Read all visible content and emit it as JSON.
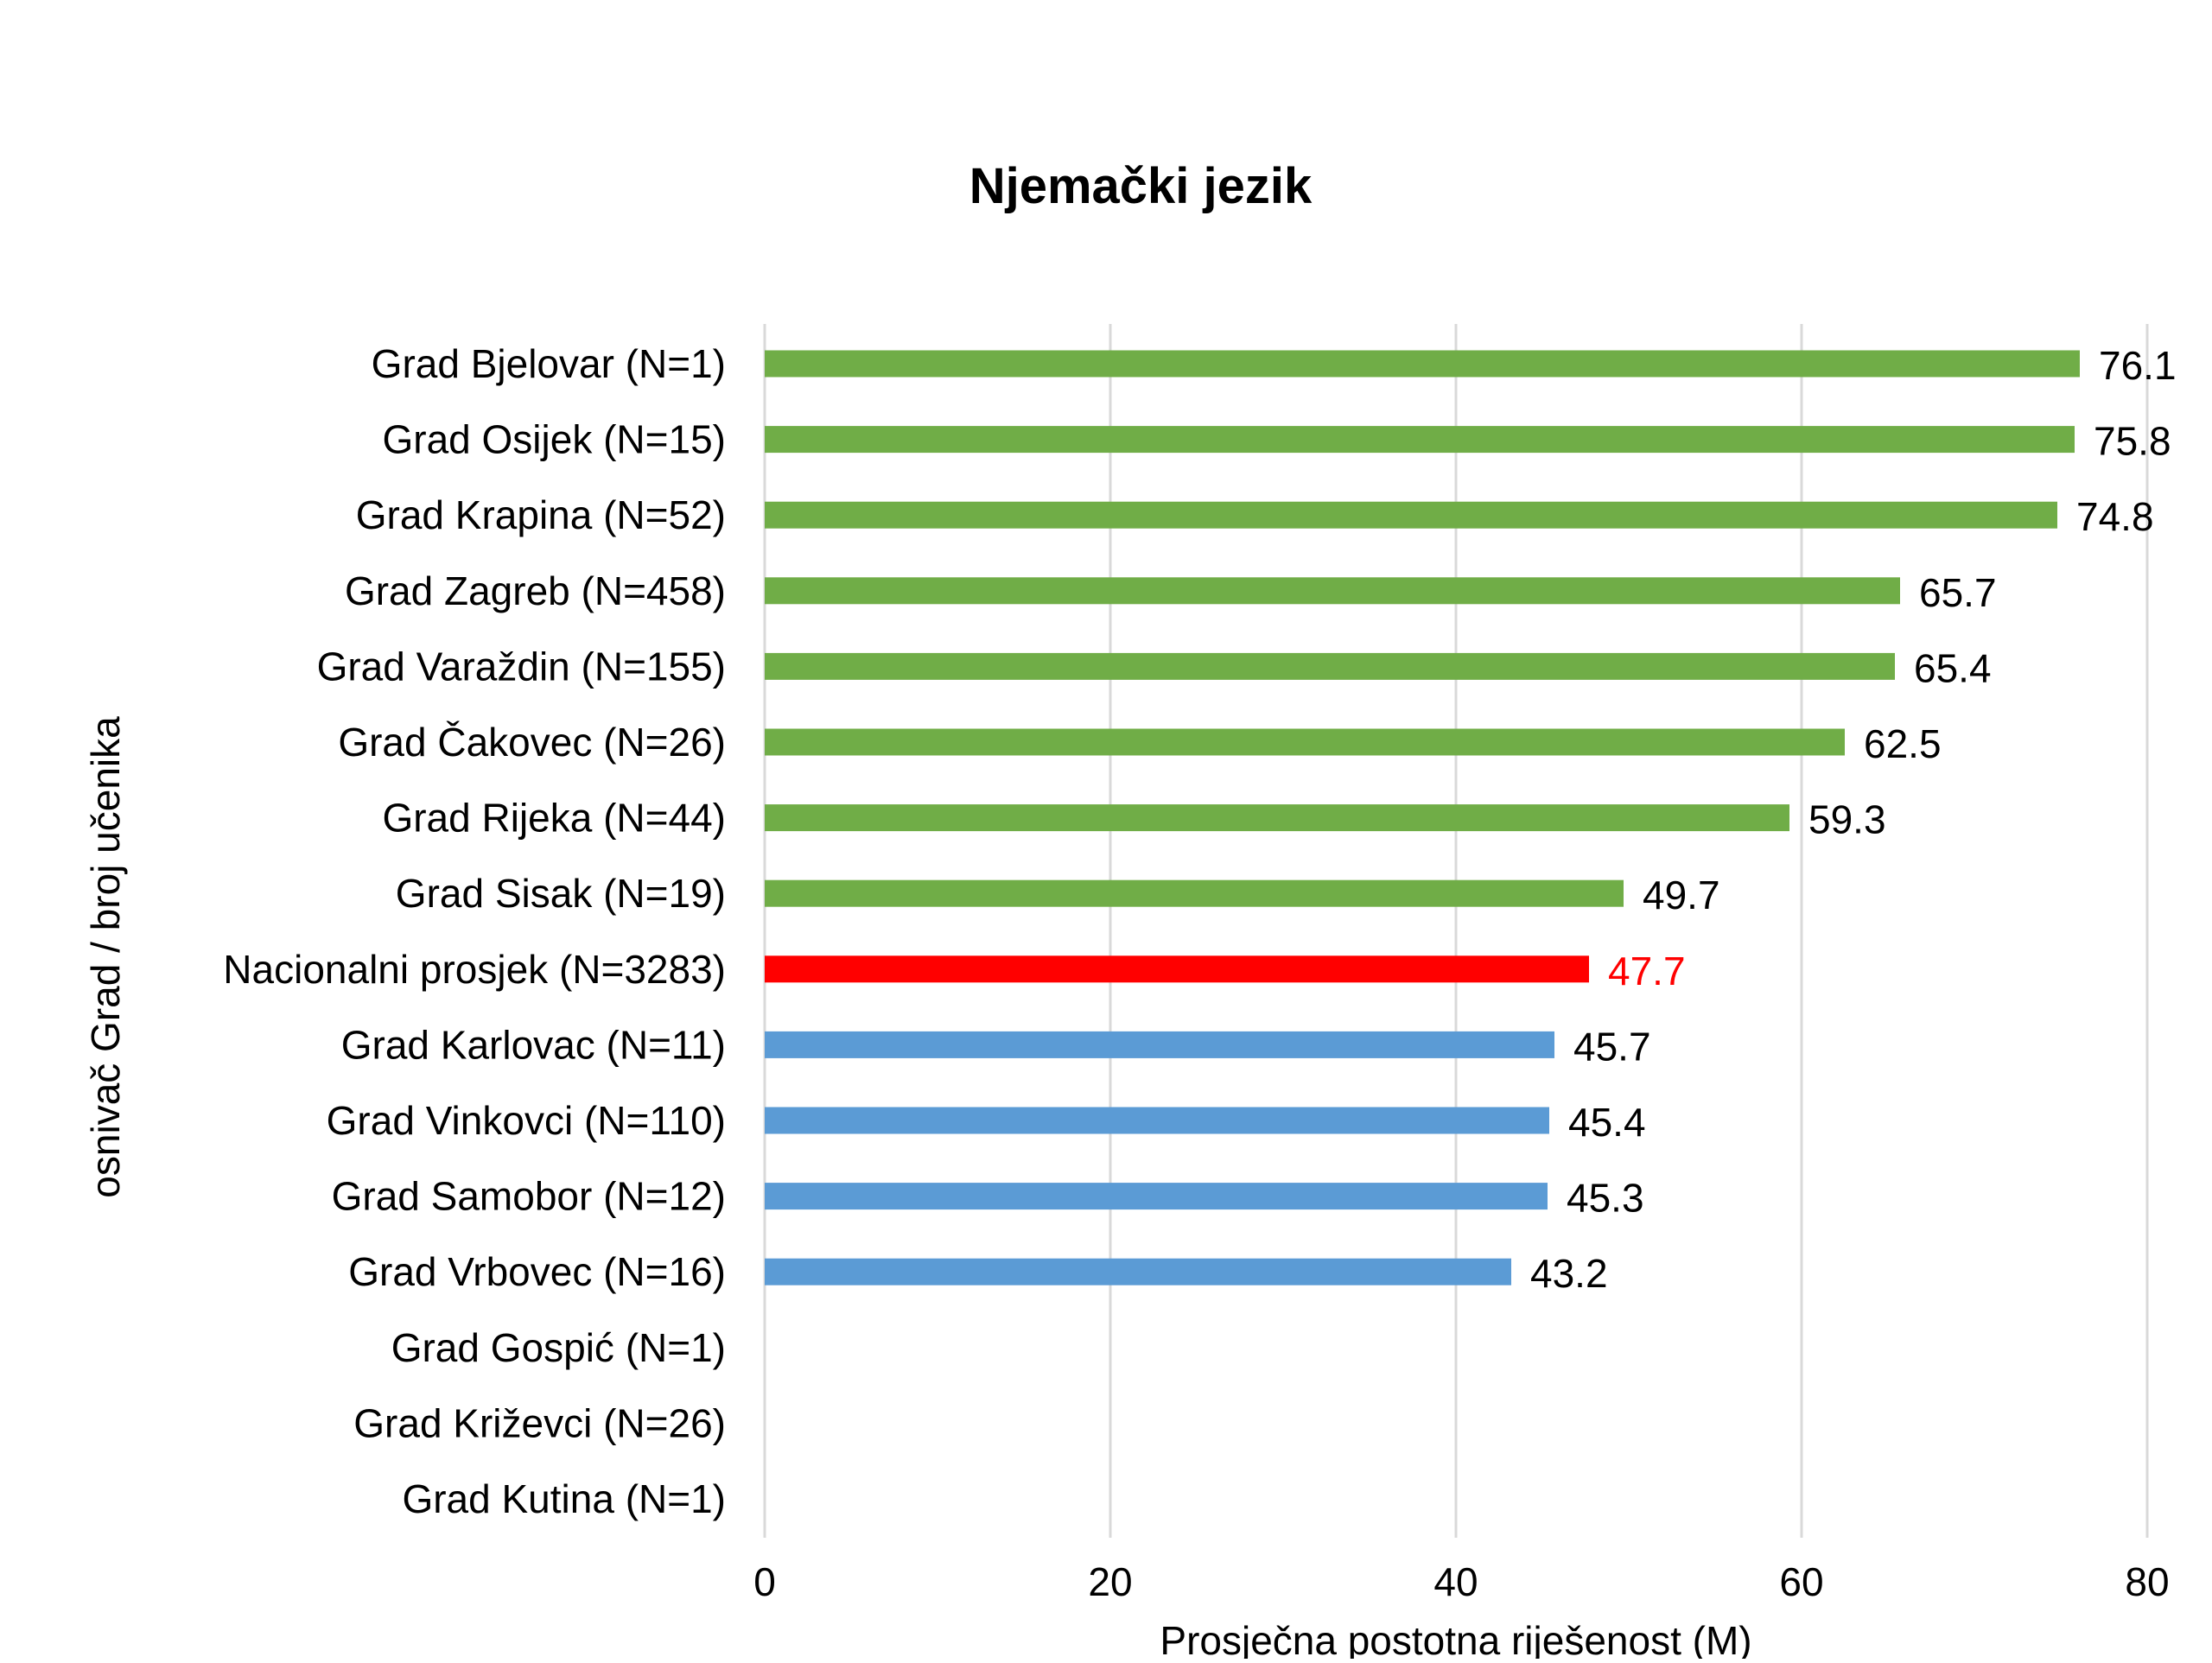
{
  "chart_data": {
    "type": "bar",
    "orientation": "horizontal",
    "title": "Njemački jezik",
    "xlabel": "Prosječna postotna riješenost (M)",
    "ylabel": "osnivač Grad / broj učenika",
    "xlim": [
      0,
      80
    ],
    "xticks": [
      "0",
      "20",
      "40",
      "60",
      "80"
    ],
    "grid": "vertical",
    "legend": "none",
    "categories": [
      "Grad Bjelovar (N=1)",
      "Grad Osijek (N=15)",
      "Grad Krapina (N=52)",
      "Grad Zagreb (N=458)",
      "Grad Varaždin (N=155)",
      "Grad Čakovec (N=26)",
      "Grad Rijeka (N=44)",
      "Grad Sisak (N=19)",
      "Nacionalni prosjek (N=3283)",
      "Grad Karlovac (N=11)",
      "Grad Vinkovci (N=110)",
      "Grad Samobor (N=12)",
      "Grad Vrbovec (N=16)",
      "Grad Gospić (N=1)",
      "Grad Križevci (N=26)",
      "Grad Kutina (N=1)"
    ],
    "values": [
      76.1,
      75.8,
      74.8,
      65.7,
      65.4,
      62.5,
      59.3,
      49.7,
      47.7,
      45.7,
      45.4,
      45.3,
      43.2,
      null,
      null,
      null
    ],
    "value_labels": [
      "76.1",
      "75.8",
      "74.8",
      "65.7",
      "65.4",
      "62.5",
      "59.3",
      "49.7",
      "47.7",
      "45.7",
      "45.4",
      "45.3",
      "43.2",
      "",
      "",
      ""
    ],
    "bar_colors": [
      "#70AD47",
      "#70AD47",
      "#70AD47",
      "#70AD47",
      "#70AD47",
      "#70AD47",
      "#70AD47",
      "#70AD47",
      "#FF0000",
      "#5B9BD5",
      "#5B9BD5",
      "#5B9BD5",
      "#5B9BD5",
      "",
      "",
      ""
    ],
    "label_colors": [
      "#000000",
      "#000000",
      "#000000",
      "#000000",
      "#000000",
      "#000000",
      "#000000",
      "#000000",
      "#FF0000",
      "#000000",
      "#000000",
      "#000000",
      "#000000",
      "",
      "",
      ""
    ],
    "colors": {
      "above_national": "#70AD47",
      "national": "#FF0000",
      "below_national": "#5B9BD5",
      "gridline": "#D9D9D9",
      "text": "#000000"
    }
  }
}
